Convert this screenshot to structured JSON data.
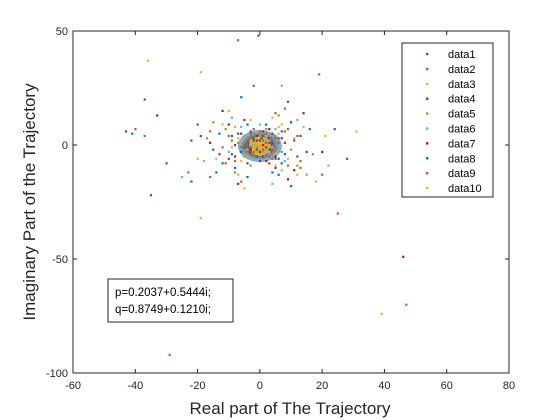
{
  "chart_data": {
    "type": "scatter",
    "title": "",
    "xlabel": "Real part of The Trajectory",
    "ylabel": "Imaginary Part of the Trajectory",
    "xlim": [
      -60,
      80
    ],
    "ylim": [
      -100,
      50
    ],
    "xticks": [
      -60,
      -40,
      -20,
      0,
      20,
      40,
      60,
      80
    ],
    "yticks": [
      -100,
      -50,
      0,
      50
    ],
    "grid": false,
    "legend_position": "top-right",
    "annotation": [
      "p=0.2037+0.5444i;",
      "q=0.8749+0.1210i;"
    ],
    "series": [
      {
        "name": "data1",
        "color": "#0072BD",
        "points": [
          [
            -0.5,
            48
          ],
          [
            -37,
            20
          ],
          [
            -35,
            -22
          ],
          [
            -41,
            5
          ],
          [
            -12,
            -8
          ],
          [
            4,
            -12
          ],
          [
            -3,
            6
          ],
          [
            6,
            3
          ],
          [
            -20,
            9
          ],
          [
            15,
            -3
          ],
          [
            24,
            7
          ],
          [
            8,
            -4
          ],
          [
            -6,
            -3
          ],
          [
            2,
            9
          ],
          [
            -9,
            4
          ],
          [
            11,
            2
          ],
          [
            -4,
            -14
          ],
          [
            5,
            -6
          ],
          [
            -15,
            -2
          ],
          [
            1,
            -5
          ],
          [
            -2,
            2
          ],
          [
            3,
            1
          ],
          [
            -1,
            -2
          ],
          [
            0.5,
            3
          ],
          [
            -3,
            -1
          ],
          [
            2,
            -3
          ],
          [
            7,
            -8
          ],
          [
            -8,
            -10
          ],
          [
            10,
            10
          ],
          [
            -13,
            5
          ]
        ]
      },
      {
        "name": "data2",
        "color": "#D95319",
        "points": [
          [
            25,
            -30
          ],
          [
            -40,
            7
          ],
          [
            -23,
            -12
          ],
          [
            19,
            31
          ],
          [
            -2,
            26
          ],
          [
            9,
            -9
          ],
          [
            -10,
            4
          ],
          [
            -16,
            6
          ],
          [
            13,
            -7
          ],
          [
            5,
            14
          ],
          [
            -6,
            -16
          ],
          [
            4,
            -2
          ],
          [
            -3,
            3
          ],
          [
            2,
            5
          ],
          [
            -1,
            -4
          ],
          [
            6,
            1
          ],
          [
            -5,
            0
          ],
          [
            1,
            2
          ],
          [
            0,
            -1
          ],
          [
            3,
            -5
          ],
          [
            -2,
            7
          ],
          [
            8,
            6
          ],
          [
            -8,
            -7
          ],
          [
            12,
            4
          ],
          [
            -12,
            -1
          ]
        ]
      },
      {
        "name": "data3",
        "color": "#EDB120",
        "points": [
          [
            -36,
            37
          ],
          [
            -19,
            32
          ],
          [
            31,
            6
          ],
          [
            -19,
            -32
          ],
          [
            18,
            -16
          ],
          [
            -7,
            -13
          ],
          [
            4,
            12
          ],
          [
            -12,
            9
          ],
          [
            9,
            -6
          ],
          [
            -4,
            -5
          ],
          [
            2,
            -3
          ],
          [
            6,
            8
          ],
          [
            -6,
            2
          ],
          [
            1,
            -1
          ],
          [
            3,
            2
          ],
          [
            -2,
            -2
          ],
          [
            0,
            1
          ],
          [
            -1,
            3
          ],
          [
            5,
            -4
          ],
          [
            -9,
            -1
          ],
          [
            11,
            3
          ],
          [
            14,
            8
          ],
          [
            -14,
            -6
          ],
          [
            7,
            -11
          ],
          [
            -3,
            11
          ]
        ]
      },
      {
        "name": "data4",
        "color": "#7E2F8E",
        "points": [
          [
            -43,
            6
          ],
          [
            -22,
            2
          ],
          [
            9,
            19
          ],
          [
            -10,
            -6
          ],
          [
            5,
            -10
          ],
          [
            -5,
            11
          ],
          [
            13,
            4
          ],
          [
            -13,
            -4
          ],
          [
            3,
            3
          ],
          [
            -3,
            -3
          ],
          [
            2,
            -1
          ],
          [
            -1,
            2
          ],
          [
            6,
            -6
          ],
          [
            -7,
            5
          ],
          [
            8,
            1
          ],
          [
            -8,
            0
          ],
          [
            0,
            -7
          ],
          [
            1,
            6
          ],
          [
            4,
            5
          ],
          [
            -4,
            -8
          ]
        ]
      },
      {
        "name": "data5",
        "color": "#77AC30",
        "points": [
          [
            17,
            -4
          ],
          [
            -17,
            3
          ],
          [
            6,
            13
          ],
          [
            -8,
            -12
          ],
          [
            10,
            -2
          ],
          [
            -11,
            7
          ],
          [
            3,
            -8
          ],
          [
            -2,
            5
          ],
          [
            1,
            1
          ],
          [
            -1,
            -1
          ],
          [
            5,
            4
          ],
          [
            -5,
            -5
          ],
          [
            7,
            -3
          ],
          [
            -7,
            1
          ],
          [
            2,
            7
          ],
          [
            -3,
            -9
          ],
          [
            12,
            -9
          ],
          [
            -15,
            10
          ],
          [
            0,
            4
          ],
          [
            4,
            -1
          ]
        ]
      },
      {
        "name": "data6",
        "color": "#4DBEEE",
        "points": [
          [
            7,
            26
          ],
          [
            -25,
            -14
          ],
          [
            22,
            -9
          ],
          [
            -18,
            -7
          ],
          [
            12,
            11
          ],
          [
            -9,
            12
          ],
          [
            15,
            -13
          ],
          [
            4,
            -17
          ],
          [
            -6,
            8
          ],
          [
            3,
            -4
          ],
          [
            -2,
            0
          ],
          [
            1,
            -3
          ],
          [
            6,
            0
          ],
          [
            -5,
            4
          ],
          [
            8,
            -7
          ],
          [
            -10,
            -3
          ],
          [
            0,
            9
          ],
          [
            2,
            2
          ],
          [
            -3,
            -6
          ],
          [
            5,
            7
          ]
        ]
      },
      {
        "name": "data7",
        "color": "#A2142F",
        "points": [
          [
            46,
            -49
          ],
          [
            20,
            -3
          ],
          [
            -33,
            13
          ],
          [
            -12,
            15
          ],
          [
            9,
            -15
          ],
          [
            14,
            14
          ],
          [
            -7,
            -17
          ],
          [
            -16,
            1
          ],
          [
            3,
            7
          ],
          [
            -3,
            -2
          ],
          [
            5,
            -5
          ],
          [
            -6,
            5
          ],
          [
            2,
            -7
          ],
          [
            -1,
            4
          ],
          [
            7,
            3
          ],
          [
            -8,
            -5
          ],
          [
            11,
            -11
          ],
          [
            -10,
            9
          ],
          [
            0,
            -3
          ],
          [
            1,
            0
          ]
        ]
      },
      {
        "name": "data8",
        "color": "#0072BD",
        "points": [
          [
            -22,
            -16
          ],
          [
            -30,
            -8
          ],
          [
            28,
            -6
          ],
          [
            -6,
            21
          ],
          [
            10,
            -18
          ],
          [
            -14,
            -12
          ],
          [
            16,
            7
          ],
          [
            -19,
            4
          ],
          [
            6,
            -13
          ],
          [
            -4,
            9
          ],
          [
            3,
            -2
          ],
          [
            -2,
            3
          ],
          [
            1,
            4
          ],
          [
            -1,
            -5
          ],
          [
            4,
            1
          ],
          [
            -5,
            -1
          ],
          [
            7,
            6
          ],
          [
            -9,
            -4
          ],
          [
            12,
            -5
          ],
          [
            0,
            2
          ]
        ]
      },
      {
        "name": "data9",
        "color": "#D95319",
        "points": [
          [
            47,
            -70
          ],
          [
            -29,
            -92
          ],
          [
            -37,
            4
          ],
          [
            -7,
            46
          ],
          [
            20,
            -13
          ],
          [
            -16,
            -14
          ],
          [
            8,
            16
          ],
          [
            -11,
            -8
          ],
          [
            13,
            -10
          ],
          [
            4,
            -6
          ],
          [
            -3,
            5
          ],
          [
            2,
            1
          ],
          [
            -2,
            -3
          ],
          [
            1,
            -2
          ],
          [
            5,
            3
          ],
          [
            -6,
            -1
          ],
          [
            9,
            7
          ],
          [
            -9,
            2
          ],
          [
            0,
            6
          ],
          [
            3,
            -8
          ]
        ]
      },
      {
        "name": "data10",
        "color": "#EDB120",
        "points": [
          [
            39,
            -74
          ],
          [
            -10,
            15
          ],
          [
            12,
            -13
          ],
          [
            -20,
            -6
          ],
          [
            21,
            4
          ],
          [
            -5,
            -19
          ],
          [
            7,
            9
          ],
          [
            -8,
            8
          ],
          [
            3,
            -3
          ],
          [
            -3,
            2
          ],
          [
            2,
            4
          ],
          [
            -1,
            -4
          ],
          [
            4,
            -1
          ],
          [
            -4,
            -2
          ],
          [
            6,
            5
          ],
          [
            -6,
            -7
          ],
          [
            1,
            1
          ],
          [
            0,
            -1
          ],
          [
            5,
            -9
          ],
          [
            -7,
            3
          ]
        ]
      }
    ]
  }
}
